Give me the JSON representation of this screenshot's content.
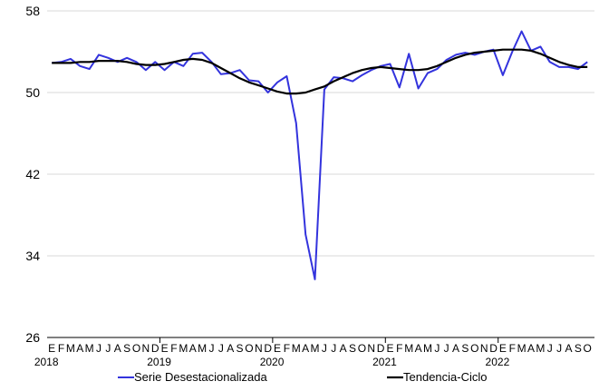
{
  "chart_data": {
    "type": "line",
    "title": "",
    "xlabel": "",
    "ylabel": "",
    "ylim": [
      26,
      58
    ],
    "yticks": [
      26,
      34,
      42,
      50,
      58
    ],
    "grid": "horizontal",
    "legend_position": "bottom",
    "month_letters": [
      "E",
      "F",
      "M",
      "A",
      "M",
      "J",
      "J",
      "A",
      "S",
      "O",
      "N",
      "D"
    ],
    "years": [
      "2018",
      "2019",
      "2020",
      "2021",
      "2022"
    ],
    "x_start": "2018-01",
    "x_end": "2022-10",
    "series": [
      {
        "name": "Serie Desestacionalizada",
        "color": "#3333dd",
        "values": [
          52.9,
          53.0,
          53.3,
          52.6,
          52.3,
          53.7,
          53.4,
          53.0,
          53.4,
          53.0,
          52.2,
          53.0,
          52.2,
          53.0,
          52.6,
          53.8,
          53.9,
          53.0,
          51.8,
          51.9,
          52.2,
          51.2,
          51.1,
          50.0,
          51.0,
          51.6,
          47.0,
          36.1,
          31.7,
          50.3,
          51.5,
          51.4,
          51.1,
          51.7,
          52.2,
          52.6,
          52.8,
          50.5,
          53.8,
          50.4,
          51.9,
          52.3,
          53.2,
          53.7,
          53.9,
          53.7,
          54.0,
          54.2,
          51.7,
          54.0,
          56.0,
          54.1,
          54.5,
          53.0,
          52.5,
          52.5,
          52.3,
          53.0
        ]
      },
      {
        "name": "Tendencia-Ciclo",
        "color": "#000000",
        "values": [
          52.9,
          52.9,
          52.9,
          53.0,
          53.0,
          53.1,
          53.1,
          53.1,
          53.0,
          52.8,
          52.7,
          52.7,
          52.8,
          53.0,
          53.2,
          53.3,
          53.2,
          52.9,
          52.4,
          51.9,
          51.4,
          51.0,
          50.7,
          50.4,
          50.1,
          49.9,
          49.9,
          50.0,
          50.3,
          50.6,
          51.1,
          51.5,
          51.9,
          52.2,
          52.4,
          52.5,
          52.4,
          52.3,
          52.2,
          52.2,
          52.3,
          52.6,
          53.0,
          53.4,
          53.7,
          53.9,
          54.0,
          54.1,
          54.2,
          54.2,
          54.2,
          54.1,
          53.8,
          53.4,
          53.0,
          52.7,
          52.5,
          52.5
        ]
      }
    ]
  }
}
